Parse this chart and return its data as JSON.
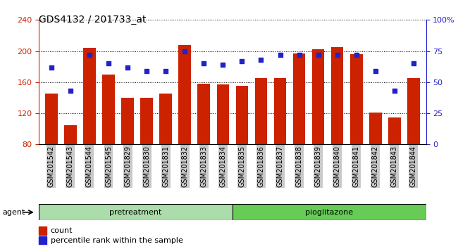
{
  "title": "GDS4132 / 201733_at",
  "samples": [
    "GSM201542",
    "GSM201543",
    "GSM201544",
    "GSM201545",
    "GSM201829",
    "GSM201830",
    "GSM201831",
    "GSM201832",
    "GSM201833",
    "GSM201834",
    "GSM201835",
    "GSM201836",
    "GSM201837",
    "GSM201838",
    "GSM201839",
    "GSM201840",
    "GSM201841",
    "GSM201842",
    "GSM201843",
    "GSM201844"
  ],
  "counts": [
    145,
    105,
    204,
    170,
    140,
    140,
    145,
    208,
    158,
    157,
    155,
    165,
    165,
    197,
    202,
    205,
    196,
    121,
    115,
    165
  ],
  "percentiles": [
    62,
    43,
    72,
    65,
    62,
    59,
    59,
    75,
    65,
    64,
    67,
    68,
    72,
    72,
    72,
    72,
    72,
    59,
    43,
    65
  ],
  "bar_color": "#cc2200",
  "dot_color": "#2222cc",
  "group1_label": "pretreatment",
  "group2_label": "pioglitazone",
  "group1_color": "#aaddaa",
  "group2_color": "#66cc55",
  "group1_count": 10,
  "group2_count": 10,
  "agent_label": "agent",
  "ymin": 80,
  "ymax": 240,
  "yticks": [
    80,
    120,
    160,
    200,
    240
  ],
  "pmin": 0,
  "pmax": 100,
  "pticks": [
    0,
    25,
    50,
    75,
    100
  ],
  "ptick_labels": [
    "0",
    "25",
    "50",
    "75",
    "100%"
  ],
  "legend_count_label": "count",
  "legend_pct_label": "percentile rank within the sample",
  "bg_color": "#ffffff",
  "tick_bg_color": "#c8c8c8",
  "title_fontsize": 10,
  "tick_fontsize": 7,
  "label_fontsize": 8
}
